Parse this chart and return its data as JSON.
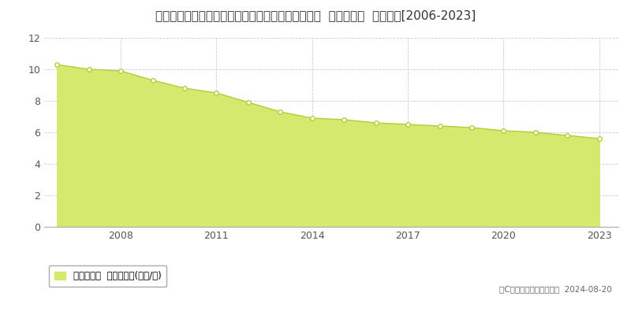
{
  "title": "和歌山県日高郡由良町大字衣奈字前田坪７６７番２  基準地価格  地価推移[2006-2023]",
  "years": [
    2006,
    2007,
    2008,
    2009,
    2010,
    2011,
    2012,
    2013,
    2014,
    2015,
    2016,
    2017,
    2018,
    2019,
    2020,
    2021,
    2022,
    2023
  ],
  "values": [
    10.3,
    10.0,
    9.9,
    9.3,
    8.8,
    8.5,
    7.9,
    7.3,
    6.9,
    6.8,
    6.6,
    6.5,
    6.4,
    6.3,
    6.1,
    6.0,
    5.8,
    5.6
  ],
  "fill_color": "#d4e96e",
  "line_color": "#b5cc3a",
  "marker_color": "#ffffff",
  "marker_edge_color": "#b5cc3a",
  "background_color": "#ffffff",
  "grid_color": "#cccccc",
  "ylim": [
    0,
    12
  ],
  "yticks": [
    0,
    2,
    4,
    6,
    8,
    10,
    12
  ],
  "xticks": [
    2008,
    2011,
    2014,
    2017,
    2020,
    2023
  ],
  "xlim": [
    2005.6,
    2023.6
  ],
  "legend_label": "基準地価格  平均坪単価(万円/坪)",
  "copyright_text": "（C）土地価格ドットコム  2024-08-20",
  "title_fontsize": 11,
  "axis_fontsize": 9
}
